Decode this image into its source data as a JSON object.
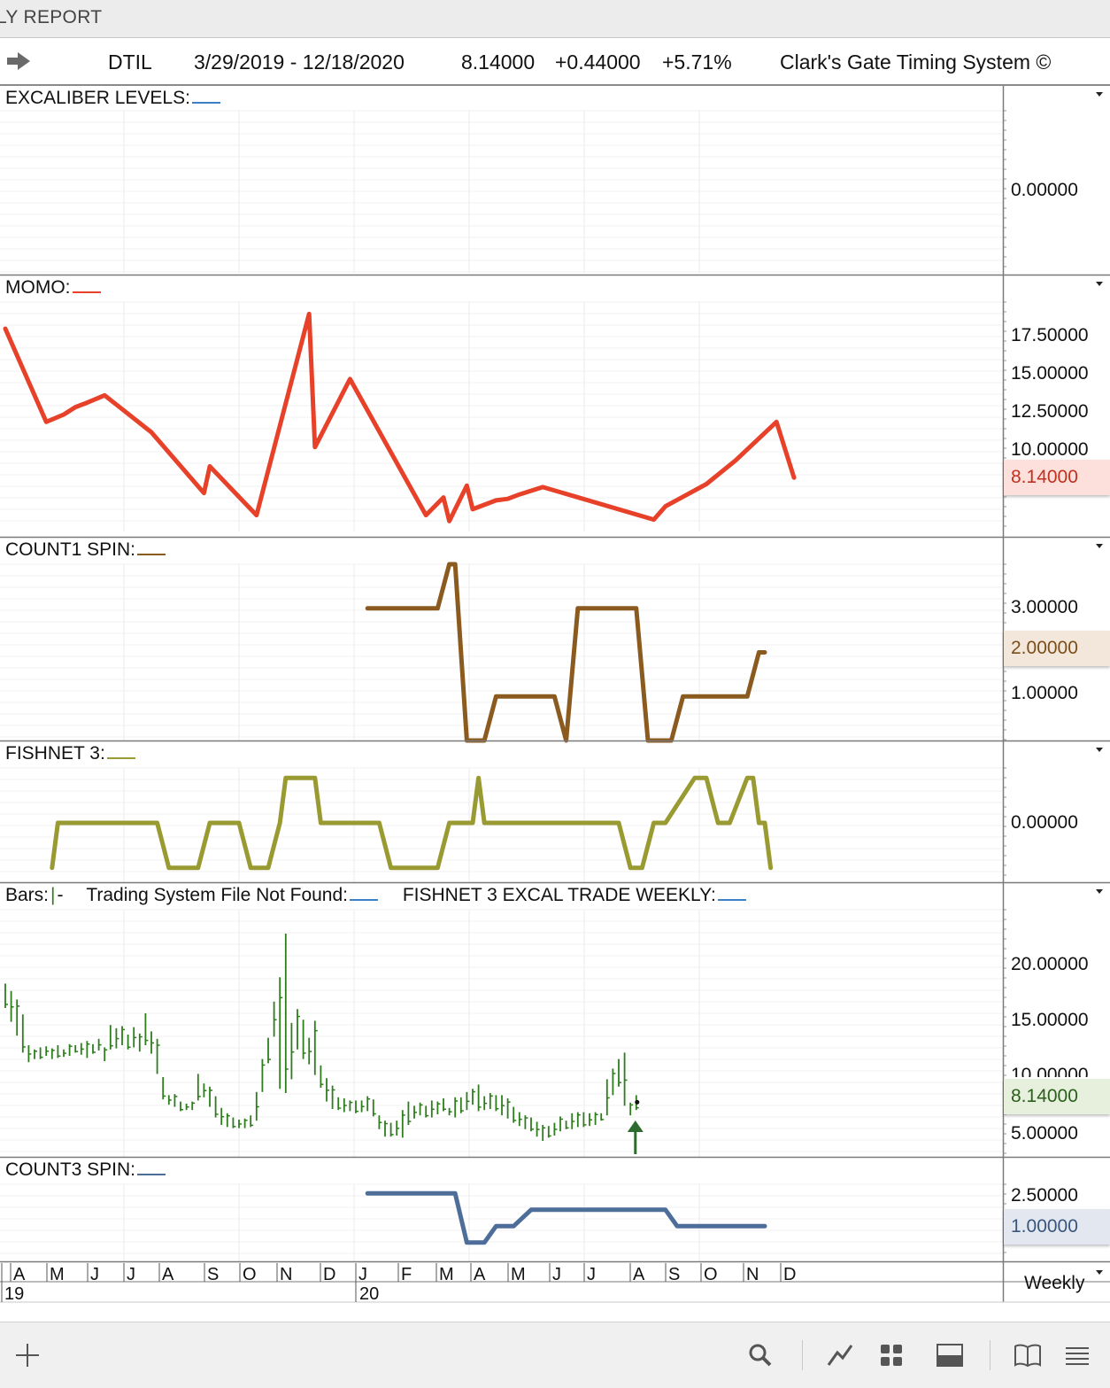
{
  "window": {
    "title": "LY REPORT"
  },
  "header": {
    "symbol": "DTIL",
    "date_range": "3/29/2019 - 12/18/2020",
    "last": "8.14000",
    "change": "+0.44000",
    "change_pct": "+5.71%",
    "system_name": "Clark's Gate Timing System ©"
  },
  "colors": {
    "momo": "#e8412a",
    "count1": "#8b5a1f",
    "fishnet": "#9a9a32",
    "bars": "#2e7d1d",
    "count3": "#4e6e9a",
    "signal_arrow": "#2e6b2e"
  },
  "panels": {
    "excaliber": {
      "title": "EXCALIBER LEVELS:",
      "y_labels": [
        "0.00000"
      ]
    },
    "momo": {
      "title": "MOMO:",
      "y_labels": [
        "17.50000",
        "15.00000",
        "12.50000",
        "10.00000"
      ],
      "last_value": "8.14000"
    },
    "count1": {
      "title": "COUNT1 SPIN:",
      "y_labels": [
        "3.00000",
        "1.00000"
      ],
      "last_value": "2.00000"
    },
    "fishnet": {
      "title": "FISHNET 3:",
      "y_labels": [
        "0.00000"
      ]
    },
    "bars": {
      "title_bars": "Bars:",
      "bars_suffix": "-",
      "title_trading": "Trading System File Not Found:",
      "title_fishnet_excal": "FISHNET 3 EXCAL TRADE WEEKLY:",
      "y_labels": [
        "20.00000",
        "15.00000",
        "10.00000",
        "5.00000"
      ],
      "last_value": "8.14000"
    },
    "count3": {
      "title": "COUNT3 SPIN:",
      "y_labels": [
        "2.50000"
      ],
      "last_value": "1.00000"
    }
  },
  "time_axis": {
    "months": [
      "A",
      "M",
      "J",
      "J",
      "A",
      "S",
      "O",
      "N",
      "D",
      "J",
      "F",
      "M",
      "A",
      "M",
      "J",
      "J",
      "A",
      "S",
      "O",
      "N",
      "D"
    ],
    "years": [
      "19",
      "20"
    ],
    "period": "Weekly"
  },
  "toolbar": [
    "add-icon",
    "search-icon",
    "draw-line-icon",
    "grid-layout-icon",
    "panel-icon",
    "book-icon",
    "menu-icon"
  ],
  "chart_data": [
    {
      "type": "line",
      "title": "MOMO",
      "x": [
        0,
        7,
        10,
        12,
        14,
        17,
        25,
        34,
        35,
        43,
        52,
        53,
        59,
        72,
        75,
        76,
        79,
        80,
        82,
        84,
        86,
        88,
        92,
        111,
        113,
        120,
        125,
        132,
        135
      ],
      "values": [
        18.2,
        11.9,
        12.4,
        12.9,
        13.2,
        13.7,
        11.2,
        7.1,
        8.9,
        5.6,
        19.2,
        10.2,
        14.8,
        5.6,
        6.8,
        5.2,
        7.6,
        6.0,
        6.3,
        6.6,
        6.7,
        7.0,
        7.5,
        5.3,
        6.2,
        7.7,
        9.3,
        11.9,
        8.14
      ],
      "ylim": [
        4.5,
        20
      ]
    },
    {
      "type": "line",
      "title": "COUNT1 SPIN",
      "x": [
        62,
        74,
        76,
        77,
        79,
        82,
        84,
        92,
        94,
        96,
        98,
        100,
        108,
        110,
        114,
        116,
        123,
        127,
        129,
        130
      ],
      "values": [
        3,
        3,
        4,
        4,
        0,
        0,
        1,
        1,
        1,
        0,
        3,
        3,
        3,
        0,
        0,
        1,
        1,
        1,
        2,
        2
      ],
      "ylim": [
        0,
        4
      ]
    },
    {
      "type": "line",
      "title": "FISHNET 3",
      "x": [
        8,
        9,
        26,
        28,
        33,
        35,
        40,
        42,
        45,
        47,
        48,
        53,
        54,
        57,
        64,
        66,
        74,
        76,
        80,
        81,
        82,
        105,
        107,
        109,
        111,
        113,
        118,
        120,
        122,
        124,
        127,
        128,
        129,
        130,
        131
      ],
      "values": [
        -1,
        0,
        0,
        -1,
        -1,
        0,
        0,
        -1,
        -1,
        0,
        1,
        1,
        0,
        0,
        0,
        -1,
        -1,
        0,
        0,
        1,
        0,
        0,
        -1,
        -1,
        0,
        0,
        1,
        1,
        0,
        0,
        1,
        1,
        0,
        0,
        -1
      ],
      "ylim": [
        -1.2,
        1.2
      ]
    },
    {
      "type": "bar",
      "title": "Bars",
      "description": "weekly high-low bars",
      "highs": [
        19.3,
        18.6,
        17.8,
        16.4,
        13.5,
        13.1,
        13.3,
        13.4,
        13.2,
        13.5,
        13.1,
        13.6,
        13.5,
        13.7,
        13.9,
        13.6,
        14.1,
        13.3,
        15.4,
        15.1,
        15.3,
        14.5,
        15.2,
        14.6,
        16.5,
        14.8,
        14.1,
        10.5,
        8.8,
        8.9,
        8.2,
        8.0,
        8.2,
        10.8,
        9.9,
        9.6,
        8.7,
        7.6,
        7.1,
        6.7,
        6.5,
        6.6,
        6.9,
        9.1,
        12.2,
        14.2,
        17.6,
        19.9,
        24.0,
        15.6,
        16.9,
        15.9,
        14.2,
        15.8,
        11.6,
        10.4,
        9.7,
        8.6,
        8.5,
        8.3,
        8.3,
        8.3,
        8.7,
        8.4,
        6.9,
        6.4,
        6.2,
        6.4,
        7.4,
        8.2,
        7.8,
        8.1,
        7.8,
        8.3,
        8.2,
        8.5,
        7.6,
        8.6,
        8.6,
        9.1,
        9.4,
        9.8,
        8.7,
        9.0,
        8.8,
        8.8,
        8.5,
        7.7,
        7.2,
        6.9,
        6.7,
        6.3,
        6.0,
        5.9,
        6.2,
        6.8,
        6.4,
        7.1,
        7.2,
        7.2,
        7.1,
        7.2,
        7.1,
        10.3,
        11.3,
        12.2,
        12.8,
        8.1,
        8.8
      ],
      "lows": [
        17.0,
        15.7,
        14.4,
        12.8,
        11.9,
        12.2,
        12.2,
        12.5,
        12.2,
        12.3,
        12.4,
        12.5,
        12.8,
        12.6,
        12.3,
        12.7,
        13.0,
        12.0,
        13.1,
        13.2,
        13.5,
        13.1,
        13.3,
        12.9,
        13.5,
        12.7,
        10.8,
        8.4,
        7.9,
        7.7,
        7.3,
        7.4,
        7.4,
        8.3,
        8.6,
        7.7,
        6.7,
        6.0,
        5.8,
        5.7,
        5.7,
        5.7,
        5.8,
        6.4,
        9.1,
        11.8,
        14.3,
        9.4,
        9.0,
        10.3,
        13.1,
        12.2,
        11.7,
        10.7,
        9.5,
        8.2,
        7.5,
        7.4,
        7.2,
        7.3,
        7.1,
        7.2,
        7.3,
        6.8,
        5.6,
        4.9,
        4.9,
        5.0,
        4.8,
        6.0,
        6.6,
        6.9,
        6.7,
        6.7,
        7.0,
        7.3,
        6.9,
        6.7,
        7.1,
        7.4,
        7.9,
        7.3,
        7.4,
        7.5,
        7.3,
        6.9,
        6.6,
        6.2,
        5.9,
        5.6,
        5.4,
        4.9,
        4.5,
        4.8,
        5.0,
        5.4,
        5.6,
        5.6,
        5.8,
        5.8,
        5.9,
        6.0,
        6.4,
        6.9,
        8.8,
        9.6,
        7.8,
        6.9,
        7.4
      ],
      "ylim": [
        3,
        26
      ]
    },
    {
      "type": "line",
      "title": "COUNT3 SPIN",
      "x": [
        62,
        77,
        79,
        82,
        84,
        87,
        90,
        113,
        115,
        130
      ],
      "values": [
        3,
        3,
        0,
        0,
        1,
        1,
        2,
        2,
        1,
        1
      ],
      "ylim": [
        -0.5,
        3.5
      ]
    }
  ]
}
